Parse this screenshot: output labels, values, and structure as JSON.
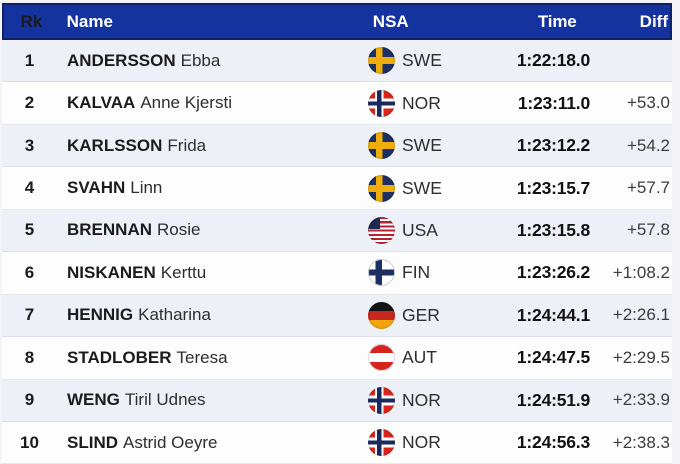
{
  "header": {
    "rk": "Rk",
    "name": "Name",
    "nsa": "NSA",
    "time": "Time",
    "diff": "Diff"
  },
  "colors": {
    "header_bg": "#14339e",
    "header_border": "#0f2166",
    "header_text": "#ffffff",
    "row_alt_bg": "#eef0f8",
    "row_bg": "#fdfdfe",
    "time_text": "#111111"
  },
  "rows": [
    {
      "rk": "1",
      "surname": "ANDERSSON",
      "given": "Ebba",
      "flag": "swe",
      "nsa": "SWE",
      "time": "1:22:18.0",
      "diff": ""
    },
    {
      "rk": "2",
      "surname": "KALVAA",
      "given": "Anne Kjersti",
      "flag": "nor",
      "nsa": "NOR",
      "time": "1:23:11.0",
      "diff": "+53.0"
    },
    {
      "rk": "3",
      "surname": "KARLSSON",
      "given": "Frida",
      "flag": "swe",
      "nsa": "SWE",
      "time": "1:23:12.2",
      "diff": "+54.2"
    },
    {
      "rk": "4",
      "surname": "SVAHN",
      "given": "Linn",
      "flag": "swe",
      "nsa": "SWE",
      "time": "1:23:15.7",
      "diff": "+57.7"
    },
    {
      "rk": "5",
      "surname": "BRENNAN",
      "given": "Rosie",
      "flag": "usa",
      "nsa": "USA",
      "time": "1:23:15.8",
      "diff": "+57.8"
    },
    {
      "rk": "6",
      "surname": "NISKANEN",
      "given": "Kerttu",
      "flag": "fin",
      "nsa": "FIN",
      "time": "1:23:26.2",
      "diff": "+1:08.2"
    },
    {
      "rk": "7",
      "surname": "HENNIG",
      "given": "Katharina",
      "flag": "ger",
      "nsa": "GER",
      "time": "1:24:44.1",
      "diff": "+2:26.1"
    },
    {
      "rk": "8",
      "surname": "STADLOBER",
      "given": "Teresa",
      "flag": "aut",
      "nsa": "AUT",
      "time": "1:24:47.5",
      "diff": "+2:29.5"
    },
    {
      "rk": "9",
      "surname": "WENG",
      "given": "Tiril Udnes",
      "flag": "nor",
      "nsa": "NOR",
      "time": "1:24:51.9",
      "diff": "+2:33.9"
    },
    {
      "rk": "10",
      "surname": "SLIND",
      "given": "Astrid Oeyre",
      "flag": "nor",
      "nsa": "NOR",
      "time": "1:24:56.3",
      "diff": "+2:38.3"
    }
  ]
}
